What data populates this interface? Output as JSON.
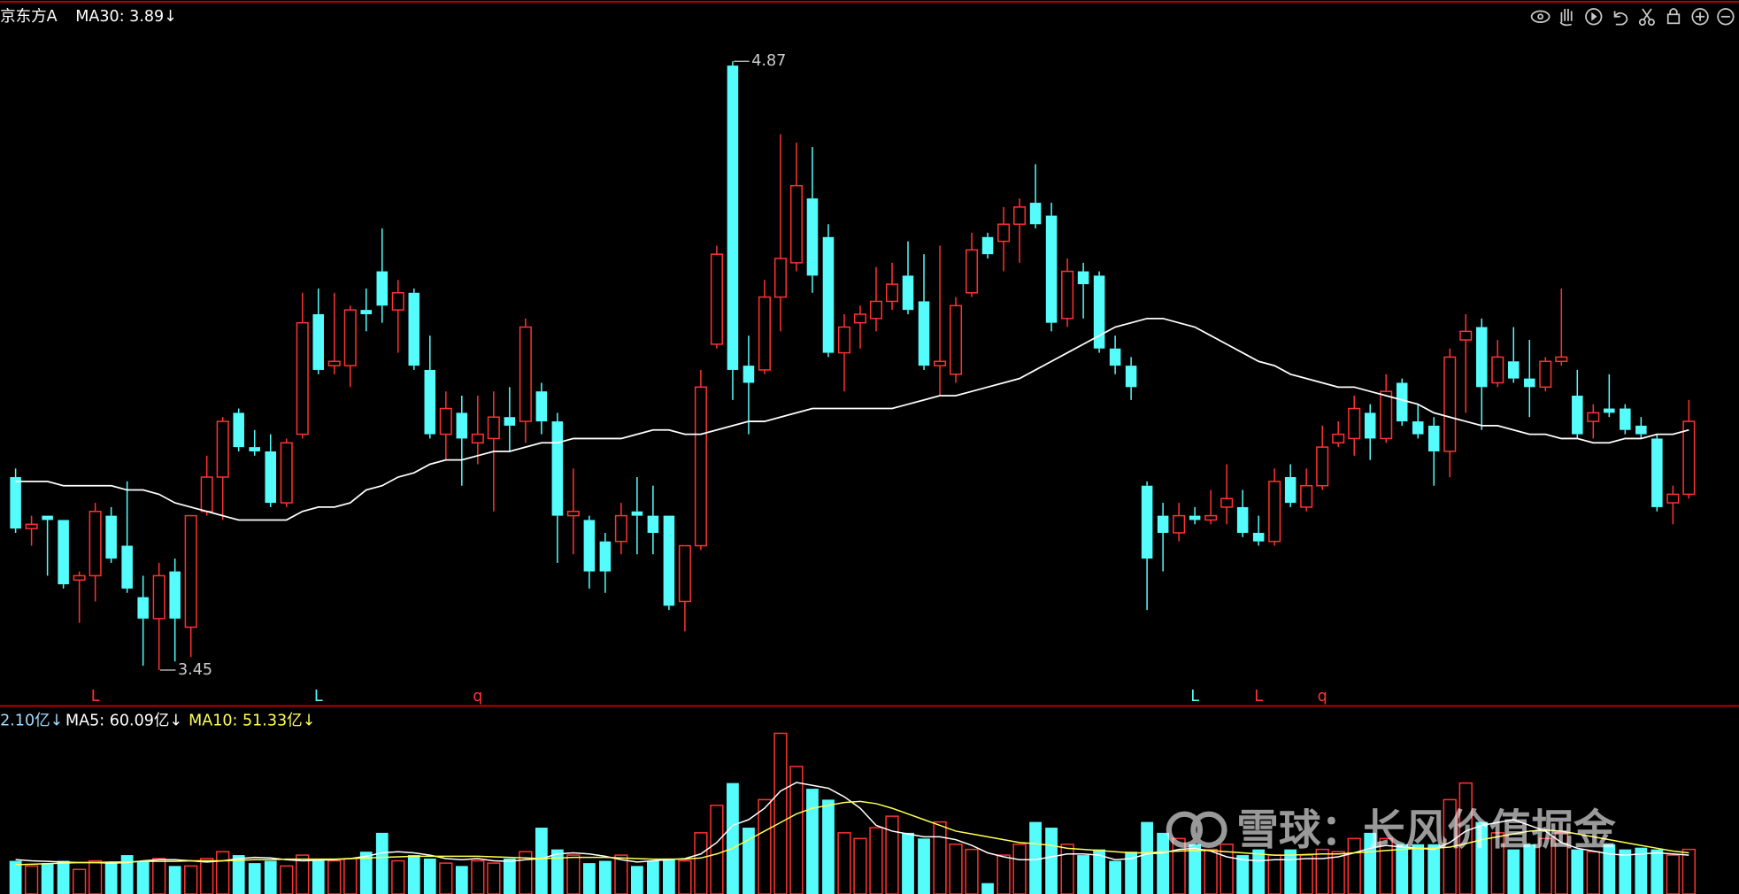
{
  "header": {
    "name": "京东方A",
    "ma30_label": "MA30: 3.89↓"
  },
  "chart_data": [
    {
      "type": "candlestick",
      "up_color": "#ff3232",
      "down_color": "#54fcfc",
      "ma30_color": "#ffffff",
      "ylim": [
        3.37,
        5.0
      ],
      "open": [
        3.9,
        3.78,
        3.81,
        3.8,
        3.66,
        3.67,
        3.81,
        3.74,
        3.62,
        3.57,
        3.68,
        3.55,
        3.82,
        3.9,
        4.05,
        3.97,
        3.96,
        3.84,
        4.0,
        4.28,
        4.16,
        4.16,
        4.29,
        4.38,
        4.29,
        4.33,
        4.15,
        4.0,
        4.05,
        3.98,
        3.99,
        4.04,
        4.03,
        4.1,
        4.03,
        3.81,
        3.8,
        3.75,
        3.75,
        3.82,
        3.81,
        3.81,
        3.61,
        3.74,
        4.21,
        4.86,
        4.16,
        4.15,
        4.32,
        4.4,
        4.55,
        4.46,
        4.19,
        4.26,
        4.27,
        4.31,
        4.37,
        4.31,
        4.16,
        4.14,
        4.33,
        4.46,
        4.45,
        4.49,
        4.54,
        4.51,
        4.27,
        4.38,
        4.37,
        4.2,
        4.16,
        3.88,
        3.81,
        3.77,
        3.81,
        3.8,
        3.83,
        3.83,
        3.77,
        3.75,
        3.9,
        3.83,
        3.88,
        3.98,
        3.99,
        4.05,
        3.99,
        4.12,
        4.03,
        4.02,
        3.96,
        4.22,
        4.25,
        4.12,
        4.17,
        4.13,
        4.11,
        4.17,
        4.09,
        4.03,
        4.06,
        4.06,
        4.02,
        3.99,
        3.84,
        3.86
      ],
      "high": [
        3.92,
        3.81,
        3.81,
        3.8,
        3.68,
        3.84,
        3.83,
        3.89,
        3.67,
        3.7,
        3.71,
        3.81,
        3.95,
        4.04,
        4.06,
        4.01,
        4.0,
        3.99,
        4.33,
        4.34,
        4.33,
        4.3,
        4.34,
        4.48,
        4.36,
        4.34,
        4.23,
        4.1,
        4.09,
        4.09,
        4.1,
        4.11,
        4.27,
        4.12,
        4.05,
        3.92,
        3.81,
        3.77,
        3.84,
        3.9,
        3.88,
        3.81,
        3.74,
        4.15,
        4.44,
        4.87,
        4.23,
        4.36,
        4.7,
        4.68,
        4.67,
        4.49,
        4.28,
        4.3,
        4.39,
        4.4,
        4.45,
        4.42,
        4.44,
        4.32,
        4.47,
        4.47,
        4.53,
        4.55,
        4.63,
        4.54,
        4.41,
        4.4,
        4.38,
        4.23,
        4.18,
        3.89,
        3.84,
        3.84,
        3.83,
        3.87,
        3.93,
        3.87,
        3.81,
        3.92,
        3.93,
        3.92,
        4.02,
        4.03,
        4.09,
        4.07,
        4.14,
        4.13,
        4.07,
        4.04,
        4.2,
        4.28,
        4.27,
        4.22,
        4.25,
        4.22,
        4.18,
        4.34,
        4.15,
        4.07,
        4.14,
        4.07,
        4.04,
        4.0,
        3.88,
        4.08
      ],
      "low": [
        3.77,
        3.74,
        3.67,
        3.64,
        3.56,
        3.61,
        3.7,
        3.63,
        3.46,
        3.45,
        3.47,
        3.48,
        3.81,
        3.8,
        3.96,
        3.95,
        3.83,
        3.83,
        3.99,
        4.14,
        4.14,
        4.11,
        4.24,
        4.26,
        4.19,
        4.15,
        3.99,
        3.94,
        3.88,
        3.93,
        3.82,
        3.96,
        3.98,
        4.0,
        3.7,
        3.72,
        3.64,
        3.63,
        3.72,
        3.72,
        3.72,
        3.59,
        3.54,
        3.73,
        4.2,
        4.08,
        4.0,
        4.14,
        4.24,
        4.38,
        4.33,
        4.18,
        4.1,
        4.2,
        4.24,
        4.29,
        4.28,
        4.15,
        4.09,
        4.12,
        4.32,
        4.41,
        4.38,
        4.4,
        4.48,
        4.24,
        4.25,
        4.27,
        4.19,
        4.14,
        4.08,
        3.59,
        3.68,
        3.75,
        3.79,
        3.79,
        3.79,
        3.76,
        3.74,
        3.74,
        3.83,
        3.82,
        3.87,
        3.97,
        3.95,
        3.94,
        3.98,
        4.02,
        3.99,
        3.88,
        3.9,
        4.05,
        4.01,
        4.11,
        4.12,
        4.04,
        4.1,
        4.16,
        3.99,
        3.99,
        4.04,
        4.0,
        3.99,
        3.82,
        3.79,
        3.85
      ],
      "close": [
        3.78,
        3.79,
        3.8,
        3.65,
        3.67,
        3.82,
        3.71,
        3.64,
        3.57,
        3.67,
        3.57,
        3.81,
        3.9,
        4.03,
        3.97,
        3.96,
        3.84,
        3.98,
        4.26,
        4.15,
        4.17,
        4.29,
        4.28,
        4.3,
        4.33,
        4.16,
        4.0,
        4.06,
        3.99,
        4.0,
        4.04,
        4.02,
        4.25,
        4.03,
        3.81,
        3.82,
        3.68,
        3.68,
        3.81,
        3.81,
        3.77,
        3.6,
        3.74,
        4.11,
        4.42,
        4.15,
        4.12,
        4.32,
        4.41,
        4.58,
        4.37,
        4.19,
        4.25,
        4.28,
        4.31,
        4.35,
        4.29,
        4.16,
        4.17,
        4.3,
        4.43,
        4.42,
        4.49,
        4.53,
        4.49,
        4.26,
        4.38,
        4.35,
        4.2,
        4.16,
        4.11,
        3.71,
        3.77,
        3.81,
        3.8,
        3.81,
        3.85,
        3.77,
        3.75,
        3.89,
        3.84,
        3.88,
        3.97,
        4.0,
        4.06,
        3.99,
        4.1,
        4.03,
        4.0,
        3.96,
        4.18,
        4.24,
        4.11,
        4.18,
        4.13,
        4.11,
        4.17,
        4.18,
        4.0,
        4.05,
        4.05,
        4.01,
        4.0,
        3.83,
        3.86,
        4.03
      ],
      "ma30": [
        3.89,
        3.89,
        3.89,
        3.88,
        3.88,
        3.88,
        3.88,
        3.87,
        3.87,
        3.86,
        3.84,
        3.83,
        3.82,
        3.81,
        3.8,
        3.8,
        3.8,
        3.8,
        3.82,
        3.83,
        3.83,
        3.84,
        3.87,
        3.88,
        3.9,
        3.91,
        3.93,
        3.94,
        3.94,
        3.95,
        3.96,
        3.96,
        3.97,
        3.98,
        3.98,
        3.99,
        3.99,
        3.99,
        3.99,
        4.0,
        4.01,
        4.01,
        4.0,
        4.0,
        4.01,
        4.02,
        4.03,
        4.03,
        4.04,
        4.05,
        4.06,
        4.06,
        4.06,
        4.06,
        4.06,
        4.06,
        4.07,
        4.08,
        4.09,
        4.09,
        4.1,
        4.11,
        4.12,
        4.13,
        4.15,
        4.17,
        4.19,
        4.21,
        4.23,
        4.25,
        4.26,
        4.27,
        4.27,
        4.26,
        4.25,
        4.23,
        4.21,
        4.19,
        4.17,
        4.16,
        4.14,
        4.13,
        4.12,
        4.11,
        4.11,
        4.1,
        4.09,
        4.08,
        4.07,
        4.05,
        4.04,
        4.03,
        4.02,
        4.02,
        4.01,
        4.0,
        4.0,
        3.99,
        3.99,
        3.98,
        3.98,
        3.99,
        3.99,
        4.0,
        4.0,
        4.01
      ]
    },
    {
      "type": "bar",
      "ylim": [
        0,
        322
      ],
      "ma5_color": "#ffffff",
      "ma10_color": "#ffff54",
      "legend": [
        {
          "text": "2.10亿↓",
          "color": "#9fdcff"
        },
        {
          "text": "MA5: 60.09亿↓",
          "color": "#ffffff"
        },
        {
          "text": "MA10: 51.33亿↓",
          "color": "#ffff54"
        }
      ],
      "values": [
        58,
        49,
        54,
        58,
        43,
        58,
        54,
        68,
        58,
        62,
        49,
        49,
        62,
        74,
        68,
        54,
        58,
        49,
        68,
        58,
        58,
        62,
        74,
        107,
        58,
        68,
        62,
        54,
        49,
        58,
        54,
        62,
        74,
        116,
        78,
        68,
        54,
        58,
        68,
        49,
        58,
        62,
        58,
        107,
        155,
        194,
        116,
        165,
        281,
        223,
        184,
        165,
        107,
        97,
        116,
        136,
        107,
        97,
        126,
        87,
        78,
        19,
        68,
        87,
        126,
        116,
        87,
        68,
        78,
        58,
        74,
        126,
        107,
        97,
        87,
        78,
        87,
        68,
        78,
        68,
        78,
        68,
        78,
        74,
        97,
        107,
        97,
        87,
        87,
        87,
        165,
        194,
        126,
        107,
        78,
        87,
        97,
        107,
        78,
        74,
        87,
        78,
        81,
        78,
        68,
        78
      ],
      "ma5": [
        60.09,
        58,
        57,
        56,
        55,
        55,
        54,
        55,
        58,
        60,
        60,
        58,
        56,
        58,
        62,
        64,
        63,
        60,
        58,
        59,
        60,
        62,
        66,
        72,
        74,
        72,
        68,
        62,
        60,
        62,
        58,
        57,
        60,
        62,
        70,
        72,
        70,
        66,
        60,
        56,
        58,
        60,
        62,
        70,
        90,
        120,
        130,
        150,
        180,
        195,
        190,
        185,
        170,
        150,
        120,
        110,
        105,
        100,
        100,
        95,
        85,
        72,
        65,
        60,
        60,
        65,
        70,
        70,
        68,
        60,
        62,
        70,
        72,
        78,
        80,
        75,
        65,
        60,
        58,
        60,
        60,
        62,
        62,
        65,
        72,
        80,
        85,
        82,
        80,
        78,
        90,
        110,
        120,
        125,
        130,
        120,
        110,
        90,
        80,
        75,
        70,
        68,
        70,
        72,
        70,
        68
      ],
      "ma10": [
        51.33,
        52,
        53,
        54,
        55,
        55,
        56,
        56,
        57,
        57,
        57,
        58,
        58,
        58,
        59,
        60,
        60,
        61,
        61,
        61,
        61,
        62,
        63,
        64,
        65,
        66,
        66,
        66,
        66,
        66,
        65,
        64,
        63,
        62,
        63,
        64,
        64,
        64,
        63,
        62,
        61,
        61,
        61,
        63,
        70,
        80,
        95,
        110,
        125,
        140,
        150,
        155,
        160,
        162,
        158,
        150,
        140,
        130,
        120,
        110,
        105,
        100,
        95,
        90,
        88,
        85,
        80,
        78,
        76,
        74,
        72,
        72,
        74,
        75,
        76,
        76,
        74,
        72,
        70,
        68,
        68,
        69,
        70,
        70,
        72,
        74,
        76,
        78,
        80,
        80,
        82,
        88,
        95,
        100,
        105,
        110,
        112,
        110,
        105,
        100,
        95,
        90,
        85,
        80,
        75,
        72
      ]
    }
  ],
  "markers": [
    {
      "text": "L",
      "color": "#ff3232"
    },
    {
      "text": "L",
      "color": "#54fcfc"
    },
    {
      "text": "q",
      "color": "#ff3232"
    },
    {
      "text": "L",
      "color": "#54fcfc"
    },
    {
      "text": "L",
      "color": "#ff3232"
    },
    {
      "text": "q",
      "color": "#ff3232"
    }
  ],
  "watermark": "雪球：长风价值掘金"
}
